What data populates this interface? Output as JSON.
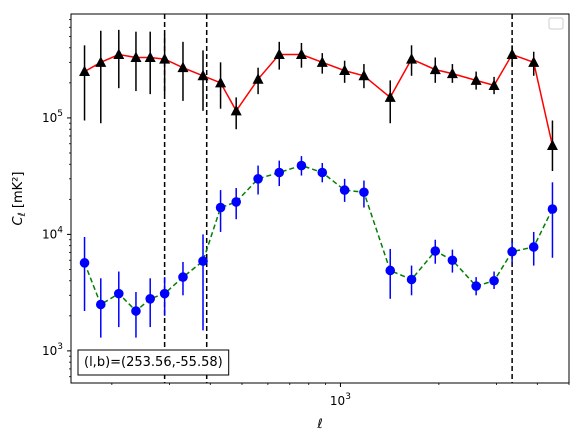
{
  "chart_data": {
    "type": "line",
    "xscale": "log",
    "yscale": "log",
    "xlim": [
      150,
      5000
    ],
    "ylim": [
      530,
      780000
    ],
    "xlabel": "ℓ",
    "ylabel": "C_ℓ [mK²]",
    "x_tick_labels": [
      {
        "value": 1000,
        "base": "10",
        "exp": "3"
      }
    ],
    "y_tick_labels": [
      {
        "value": 1000,
        "base": "10",
        "exp": "3"
      },
      {
        "value": 10000,
        "base": "10",
        "exp": "4"
      },
      {
        "value": 100000,
        "base": "10",
        "exp": "5"
      }
    ],
    "legend": {
      "placement": "top-right",
      "entries": []
    },
    "annotation": "(l,b)=(253.56,-55.58)",
    "vlines": [
      {
        "x": 290,
        "style": "dashed",
        "color": "#000000"
      },
      {
        "x": 390,
        "style": "dashed",
        "color": "#000000"
      },
      {
        "x": 3350,
        "style": "dashed",
        "color": "#000000"
      }
    ],
    "series": [
      {
        "line_color": "#ff0000",
        "line_style": "solid",
        "marker": "triangle",
        "marker_color": "#000000",
        "error_color": "#000000",
        "points": [
          {
            "x": 165,
            "y": 250000,
            "lo": 95000,
            "hi": 420000
          },
          {
            "x": 185,
            "y": 300000,
            "lo": 90000,
            "hi": 560000
          },
          {
            "x": 210,
            "y": 350000,
            "lo": 180000,
            "hi": 570000
          },
          {
            "x": 237,
            "y": 330000,
            "lo": 170000,
            "hi": 550000
          },
          {
            "x": 262,
            "y": 330000,
            "lo": 160000,
            "hi": 550000
          },
          {
            "x": 290,
            "y": 320000,
            "lo": 160000,
            "hi": 520000
          },
          {
            "x": 330,
            "y": 270000,
            "lo": 140000,
            "hi": 450000
          },
          {
            "x": 380,
            "y": 230000,
            "lo": 115000,
            "hi": 380000
          },
          {
            "x": 430,
            "y": 200000,
            "lo": 120000,
            "hi": 300000
          },
          {
            "x": 480,
            "y": 115000,
            "lo": 80000,
            "hi": 150000
          },
          {
            "x": 560,
            "y": 215000,
            "lo": 160000,
            "hi": 270000
          },
          {
            "x": 650,
            "y": 350000,
            "lo": 260000,
            "hi": 450000
          },
          {
            "x": 760,
            "y": 350000,
            "lo": 270000,
            "hi": 440000
          },
          {
            "x": 880,
            "y": 300000,
            "lo": 240000,
            "hi": 360000
          },
          {
            "x": 1030,
            "y": 255000,
            "lo": 200000,
            "hi": 310000
          },
          {
            "x": 1180,
            "y": 230000,
            "lo": 180000,
            "hi": 290000
          },
          {
            "x": 1420,
            "y": 150000,
            "lo": 90000,
            "hi": 210000
          },
          {
            "x": 1650,
            "y": 320000,
            "lo": 230000,
            "hi": 420000
          },
          {
            "x": 1950,
            "y": 260000,
            "lo": 200000,
            "hi": 330000
          },
          {
            "x": 2200,
            "y": 240000,
            "lo": 200000,
            "hi": 290000
          },
          {
            "x": 2600,
            "y": 210000,
            "lo": 175000,
            "hi": 250000
          },
          {
            "x": 2950,
            "y": 190000,
            "lo": 160000,
            "hi": 225000
          },
          {
            "x": 3350,
            "y": 350000,
            "lo": 280000,
            "hi": 420000
          },
          {
            "x": 3900,
            "y": 300000,
            "lo": 230000,
            "hi": 370000
          },
          {
            "x": 4450,
            "y": 58000,
            "lo": 35000,
            "hi": 95000
          }
        ]
      },
      {
        "line_color": "#008000",
        "line_style": "dashed",
        "marker": "circle",
        "marker_color": "#0000ff",
        "error_color": "#0000ff",
        "points": [
          {
            "x": 165,
            "y": 5700,
            "lo": 2200,
            "hi": 9500
          },
          {
            "x": 185,
            "y": 2500,
            "lo": 1300,
            "hi": 4200
          },
          {
            "x": 210,
            "y": 3100,
            "lo": 1600,
            "hi": 4800
          },
          {
            "x": 237,
            "y": 2200,
            "lo": 1300,
            "hi": 3200
          },
          {
            "x": 262,
            "y": 2800,
            "lo": 1600,
            "hi": 4200
          },
          {
            "x": 290,
            "y": 3100,
            "lo": 2000,
            "hi": 4300
          },
          {
            "x": 330,
            "y": 4300,
            "lo": 3000,
            "hi": 5800
          },
          {
            "x": 380,
            "y": 5900,
            "lo": 1500,
            "hi": 10000
          },
          {
            "x": 430,
            "y": 17000,
            "lo": 10500,
            "hi": 24000
          },
          {
            "x": 480,
            "y": 19000,
            "lo": 13500,
            "hi": 25000
          },
          {
            "x": 560,
            "y": 30000,
            "lo": 22000,
            "hi": 39000
          },
          {
            "x": 650,
            "y": 34000,
            "lo": 26000,
            "hi": 43000
          },
          {
            "x": 760,
            "y": 39000,
            "lo": 32000,
            "hi": 47000
          },
          {
            "x": 880,
            "y": 34000,
            "lo": 28000,
            "hi": 41000
          },
          {
            "x": 1030,
            "y": 24000,
            "lo": 19000,
            "hi": 30000
          },
          {
            "x": 1180,
            "y": 23000,
            "lo": 17000,
            "hi": 29000
          },
          {
            "x": 1420,
            "y": 4900,
            "lo": 2800,
            "hi": 7500
          },
          {
            "x": 1650,
            "y": 4100,
            "lo": 3000,
            "hi": 5400
          },
          {
            "x": 1950,
            "y": 7200,
            "lo": 5600,
            "hi": 9000
          },
          {
            "x": 2200,
            "y": 6000,
            "lo": 4700,
            "hi": 7400
          },
          {
            "x": 2600,
            "y": 3600,
            "lo": 3000,
            "hi": 4300
          },
          {
            "x": 2950,
            "y": 4000,
            "lo": 3400,
            "hi": 4800
          },
          {
            "x": 3350,
            "y": 7100,
            "lo": 5700,
            "hi": 8700
          },
          {
            "x": 3900,
            "y": 7800,
            "lo": 5400,
            "hi": 10500
          },
          {
            "x": 4450,
            "y": 16500,
            "lo": 6300,
            "hi": 28000
          }
        ]
      }
    ]
  }
}
